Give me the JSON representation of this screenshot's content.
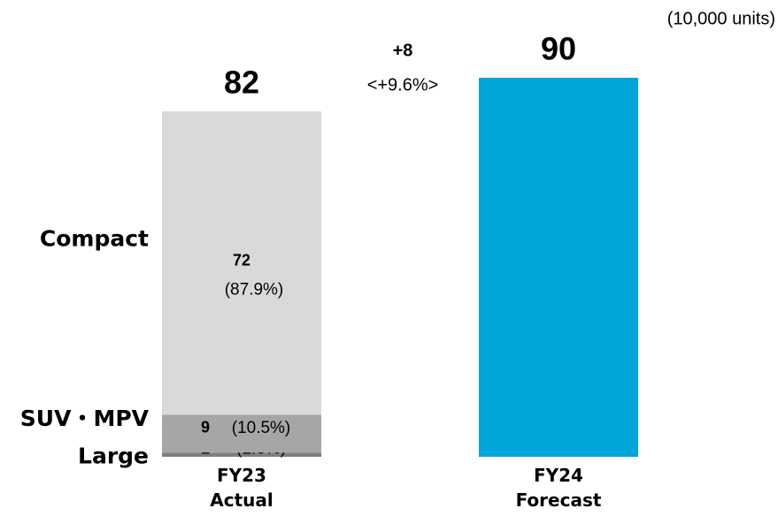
{
  "chart_data": {
    "type": "bar",
    "stacked": true,
    "unit_label": "(10,000 units)",
    "categories": [
      "FY23 Actual",
      "FY24 Forecast"
    ],
    "series": [
      {
        "name": "Large",
        "color": "#7f7f7f",
        "values": [
          1,
          null
        ],
        "shares": [
          1.6,
          null
        ],
        "share_labels": [
          "(1.6%)",
          null
        ]
      },
      {
        "name": "SUV・MPV",
        "color": "#a6a6a6",
        "values": [
          9,
          null
        ],
        "shares": [
          10.5,
          null
        ],
        "share_labels": [
          "(10.5%)",
          null
        ]
      },
      {
        "name": "Compact",
        "color": "#d9d9d9",
        "values": [
          72,
          null
        ],
        "shares": [
          87.9,
          null
        ],
        "share_labels": [
          "(87.9%)",
          null
        ]
      },
      {
        "color": "#00a5d9",
        "values": [
          null,
          90
        ]
      }
    ],
    "totals": [
      82,
      90
    ],
    "change": {
      "value": 8,
      "label": "+8",
      "pct": 9.6,
      "pct_label": "<+9.6%>"
    },
    "ylim": [
      0,
      90
    ]
  }
}
